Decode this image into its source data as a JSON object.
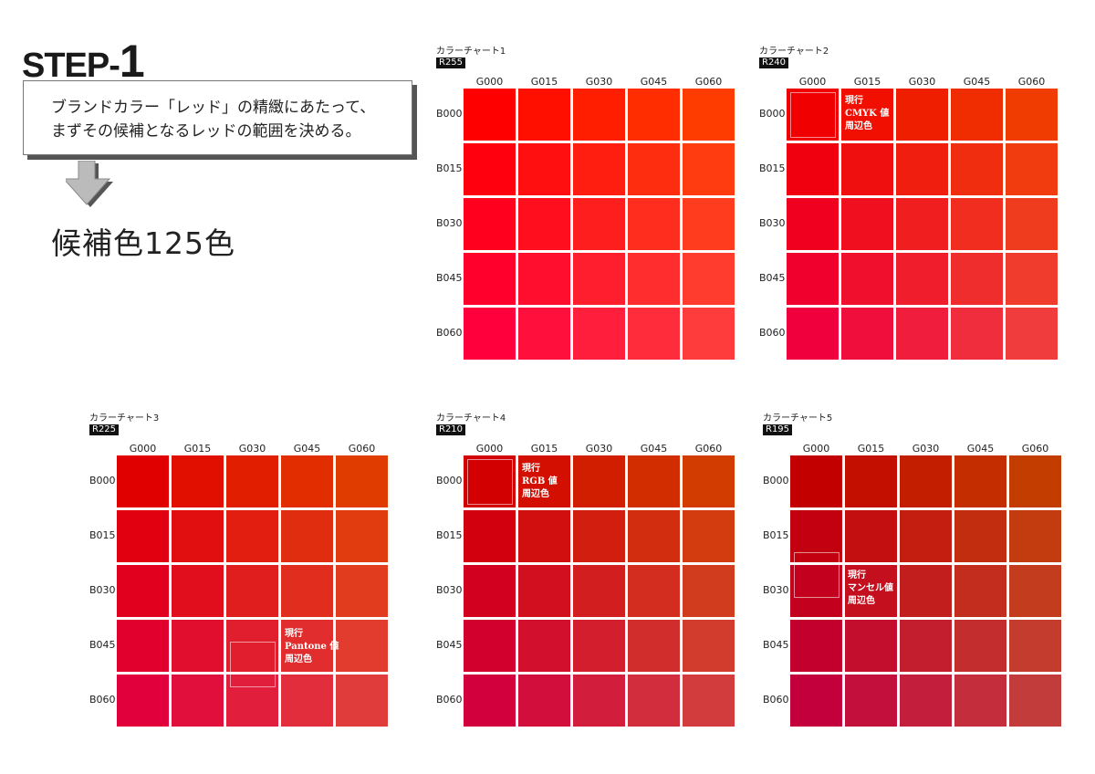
{
  "header": {
    "step_label": "STEP-",
    "step_number": "1"
  },
  "note": {
    "line1": "ブランドカラー「レッド」の精緻にあたって、",
    "line2": "まずその候補となるレッドの範囲を決める。"
  },
  "arrow_icon": "down-arrow-icon",
  "candidates": "候補色125色",
  "columns": [
    "G000",
    "G015",
    "G030",
    "G045",
    "G060"
  ],
  "rows": [
    "B000",
    "B015",
    "B030",
    "B045",
    "B060"
  ],
  "g_values": [
    0,
    15,
    30,
    45,
    60
  ],
  "b_values": [
    0,
    15,
    30,
    45,
    60
  ],
  "charts": [
    {
      "title": "カラーチャート1",
      "r_label": "R255",
      "r": 255,
      "annotation": null
    },
    {
      "title": "カラーチャート2",
      "r_label": "R240",
      "r": 240,
      "annotation": {
        "lines": [
          "現行",
          "CMYK 値",
          "周辺色"
        ]
      }
    },
    {
      "title": "カラーチャート3",
      "r_label": "R225",
      "r": 225,
      "annotation": {
        "lines": [
          "現行",
          "Pantone 値",
          "周辺色"
        ]
      }
    },
    {
      "title": "カラーチャート4",
      "r_label": "R210",
      "r": 210,
      "annotation": {
        "lines": [
          "現行",
          "RGB 値",
          "周辺色"
        ]
      }
    },
    {
      "title": "カラーチャート5",
      "r_label": "R195",
      "r": 195,
      "annotation": {
        "lines": [
          "現行",
          "マンセル値",
          "周辺色"
        ]
      }
    }
  ]
}
